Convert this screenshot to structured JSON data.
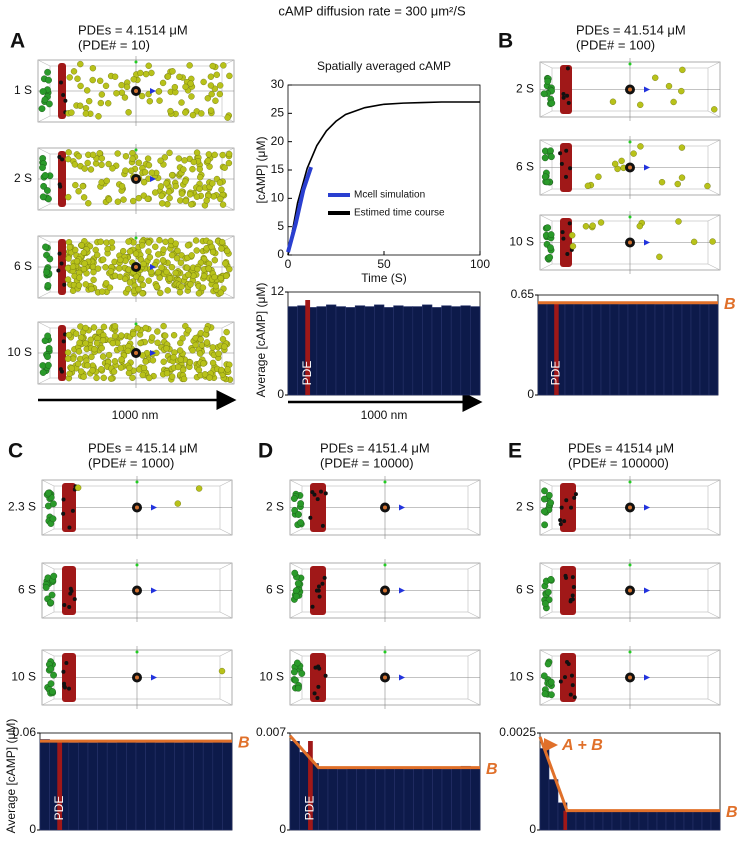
{
  "title": "cAMP diffusion rate = 300 μm²/S",
  "scale_labels": [
    "1000 nm",
    "1000 nm"
  ],
  "panels": [
    {
      "label": "A",
      "pde_text": "PDEs = 4.1514 μM",
      "pde_count": "(PDE# = 10)",
      "times": [
        "1 S",
        "2 S",
        "6 S",
        "10 S"
      ]
    },
    {
      "label": "B",
      "pde_text": "PDEs = 41.514 μM",
      "pde_count": "(PDE# = 100)",
      "times": [
        "2 S",
        "6 S",
        "10 S"
      ]
    },
    {
      "label": "C",
      "pde_text": "PDEs = 415.14 μM",
      "pde_count": "(PDE# = 1000)",
      "times": [
        "2.3 S",
        "6 S",
        "10 S"
      ]
    },
    {
      "label": "D",
      "pde_text": "PDEs = 4151.4 μM",
      "pde_count": "(PDE# = 10000)",
      "times": [
        "2 S",
        "6 S",
        "10 S"
      ]
    },
    {
      "label": "E",
      "pde_text": "PDEs = 41514 μM",
      "pde_count": "(PDE# = 100000)",
      "times": [
        "2 S",
        "6 S",
        "10 S"
      ]
    }
  ],
  "chart_data": [
    {
      "type": "line",
      "title": "Spatially averaged cAMP",
      "xlabel": "Time (S)",
      "ylabel": "[cAMP] (μM)",
      "xlim": [
        0,
        100
      ],
      "ylim": [
        0,
        30
      ],
      "xticks": [
        0,
        50,
        100
      ],
      "yticks": [
        0,
        5,
        10,
        15,
        20,
        25,
        30
      ],
      "series": [
        {
          "name": "Mcell simulation",
          "color": "#2a3fd0",
          "x": [
            0,
            2,
            4,
            6,
            8,
            10,
            12
          ],
          "values": [
            0.5,
            3,
            5.5,
            8.5,
            11.5,
            13.5,
            15.5
          ]
        },
        {
          "name": "Estimed time course",
          "color": "#000000",
          "x": [
            0,
            5,
            10,
            15,
            20,
            25,
            30,
            40,
            50,
            60,
            70,
            80,
            90,
            100
          ],
          "values": [
            0,
            9.2,
            15.3,
            19.3,
            21.9,
            23.6,
            24.8,
            26,
            26.6,
            26.8,
            26.9,
            27,
            27,
            27
          ]
        }
      ]
    },
    {
      "type": "histogram",
      "ylabel": "Average [cAMP] (μM)",
      "xlim": [
        0,
        1000
      ],
      "ylim": [
        0,
        12
      ],
      "yticks": [
        0,
        12
      ],
      "color": "#0d1a4a",
      "bins": [
        0,
        50,
        100,
        150,
        200,
        250,
        300,
        350,
        400,
        450,
        500,
        550,
        600,
        650,
        700,
        750,
        800,
        850,
        900,
        950,
        1000
      ],
      "values": [
        10.3,
        10.4,
        10.2,
        10.3,
        10.5,
        10.3,
        10.2,
        10.4,
        10.3,
        10.5,
        10.2,
        10.4,
        10.3,
        10.3,
        10.5,
        10.2,
        10.4,
        10.3,
        10.4,
        10.3
      ],
      "pde": {
        "label": "PDE",
        "x": [
          90,
          115
        ],
        "color": "#a01818"
      }
    },
    {
      "type": "histogram",
      "xlim": [
        0,
        1000
      ],
      "ylim": [
        0,
        0.65
      ],
      "yticks": [
        0,
        0.65
      ],
      "color": "#0d1a4a",
      "bins": [
        0,
        50,
        100,
        150,
        200,
        250,
        300,
        350,
        400,
        450,
        500,
        550,
        600,
        650,
        700,
        750,
        800,
        850,
        900,
        950,
        1000
      ],
      "values": [
        0.6,
        0.6,
        0.59,
        0.6,
        0.6,
        0.59,
        0.6,
        0.6,
        0.6,
        0.59,
        0.6,
        0.6,
        0.6,
        0.59,
        0.6,
        0.6,
        0.6,
        0.6,
        0.59,
        0.6
      ],
      "pde": {
        "label": "PDE",
        "x": [
          90,
          115
        ],
        "color": "#a01818"
      },
      "fit": {
        "x": [
          0,
          1000
        ],
        "values": [
          0.6,
          0.6
        ],
        "color": "#e0702a"
      },
      "annotations": [
        "B"
      ]
    },
    {
      "type": "histogram",
      "xlim": [
        0,
        1000
      ],
      "ylim": [
        0,
        0.06
      ],
      "yticks": [
        0,
        0.06
      ],
      "color": "#0d1a4a",
      "ylabel": "Average [cAMP] (μM)",
      "bins": [
        0,
        50,
        100,
        150,
        200,
        250,
        300,
        350,
        400,
        450,
        500,
        550,
        600,
        650,
        700,
        750,
        800,
        850,
        900,
        950,
        1000
      ],
      "values": [
        0.056,
        0.055,
        0.055,
        0.054,
        0.055,
        0.054,
        0.055,
        0.054,
        0.055,
        0.055,
        0.054,
        0.055,
        0.054,
        0.055,
        0.054,
        0.055,
        0.055,
        0.054,
        0.055,
        0.054
      ],
      "pde": {
        "label": "PDE",
        "x": [
          90,
          115
        ],
        "color": "#a01818"
      },
      "fit": {
        "x": [
          0,
          1000
        ],
        "values": [
          0.055,
          0.055
        ],
        "color": "#e0702a"
      },
      "annotations": [
        "B"
      ]
    },
    {
      "type": "histogram",
      "xlim": [
        0,
        1000
      ],
      "ylim": [
        0,
        0.007
      ],
      "yticks": [
        0,
        0.007
      ],
      "color": "#0d1a4a",
      "bins": [
        0,
        50,
        100,
        150,
        200,
        250,
        300,
        350,
        400,
        450,
        500,
        550,
        600,
        650,
        700,
        750,
        800,
        850,
        900,
        950,
        1000
      ],
      "values": [
        0.0064,
        0.0056,
        0.0048,
        0.0045,
        0.0045,
        0.0044,
        0.0045,
        0.0045,
        0.0045,
        0.0044,
        0.0045,
        0.0045,
        0.0044,
        0.0045,
        0.0045,
        0.0045,
        0.0044,
        0.0045,
        0.0046,
        0.0045
      ],
      "pde": {
        "label": "PDE",
        "x": [
          95,
          120
        ],
        "color": "#a01818"
      },
      "fit": {
        "x": [
          0,
          150,
          1000
        ],
        "values": [
          0.0068,
          0.0045,
          0.0045
        ],
        "color": "#e0702a"
      },
      "annotations": [
        "B"
      ]
    },
    {
      "type": "histogram",
      "xlim": [
        0,
        1000
      ],
      "ylim": [
        0,
        0.0025
      ],
      "yticks": [
        0,
        0.0025
      ],
      "color": "#0d1a4a",
      "bins": [
        0,
        50,
        100,
        150,
        200,
        250,
        300,
        350,
        400,
        450,
        500,
        550,
        600,
        650,
        700,
        750,
        800,
        850,
        900,
        950,
        1000
      ],
      "values": [
        0.0021,
        0.0013,
        0.0007,
        0.0005,
        0.0005,
        0.0005,
        0.0005,
        0.0005,
        0.0005,
        0.0005,
        0.0005,
        0.0005,
        0.0005,
        0.0005,
        0.0005,
        0.0005,
        0.0005,
        0.0005,
        0.0005,
        0.0005
      ],
      "pde": {
        "label": "PDE",
        "x": [
          130,
          150
        ],
        "color": "#a01818"
      },
      "fit": {
        "x": [
          0,
          150,
          1000
        ],
        "values": [
          0.0024,
          0.0005,
          0.0005
        ],
        "color": "#e0702a"
      },
      "annotations": [
        "A + B",
        "B"
      ]
    }
  ]
}
